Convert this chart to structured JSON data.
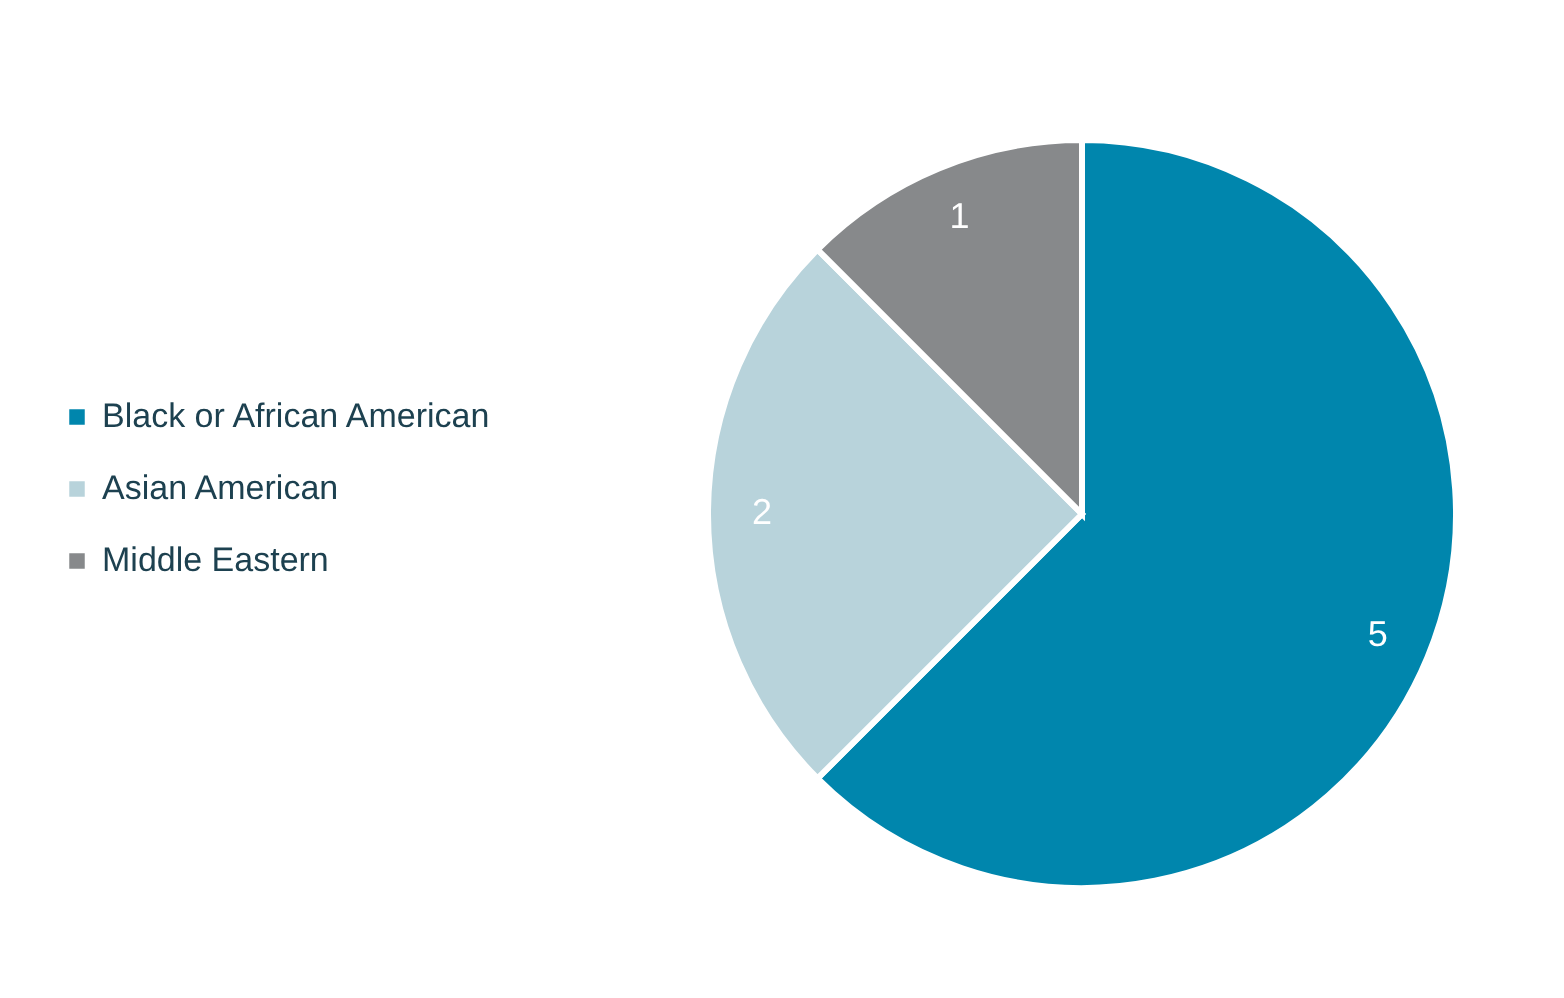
{
  "chart_data": {
    "type": "pie",
    "categories": [
      "Black or African American",
      "Asian American",
      "Middle Eastern"
    ],
    "values": [
      5,
      2,
      1
    ],
    "colors": [
      "#0086ad",
      "#b8d3db",
      "#87898b"
    ],
    "data_labels": true,
    "legend": "left"
  }
}
